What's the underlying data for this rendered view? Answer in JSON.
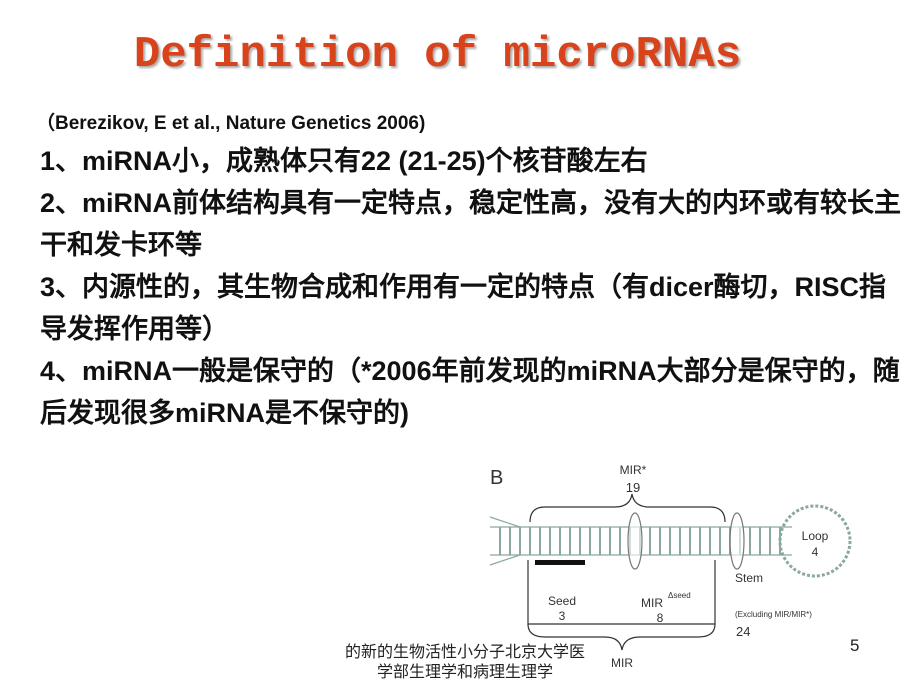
{
  "header": {
    "title": "Definition of microRNAs",
    "citation": "（Berezikov, E et al., Nature Genetics 2006)"
  },
  "items": [
    "1、miRNA小，成熟体只有22 (21-25)个核苷酸左右",
    "2、miRNA前体结构具有一定特点，稳定性高，没有大的内环或有较长主干和发卡环等",
    "3、内源性的，其生物合成和作用有一定的特点（有dicer酶切，RISC指导发挥作用等）",
    "4、miRNA一般是保守的（*2006年前发现的miRNA大部分是保守的，随后发现很多miRNA是不保守的)"
  ],
  "figure": {
    "panel": "B",
    "mir_star": "MIR*",
    "mir_star_len": "19",
    "loop": "Loop",
    "loop_len": "4",
    "seed": "Seed",
    "seed_len": "3",
    "mir_dseed": "MIR",
    "mir_dseed_sup": "Δseed",
    "mir_dseed_len": "8",
    "stem": "Stem",
    "stem_note": "(Excluding MIR/MIR*)",
    "stem_len": "24",
    "mir": "MIR"
  },
  "footer": {
    "line1": "的新的生物活性小分子北京大学医",
    "line2": "学部生理学和病理生理学",
    "page": "5"
  }
}
